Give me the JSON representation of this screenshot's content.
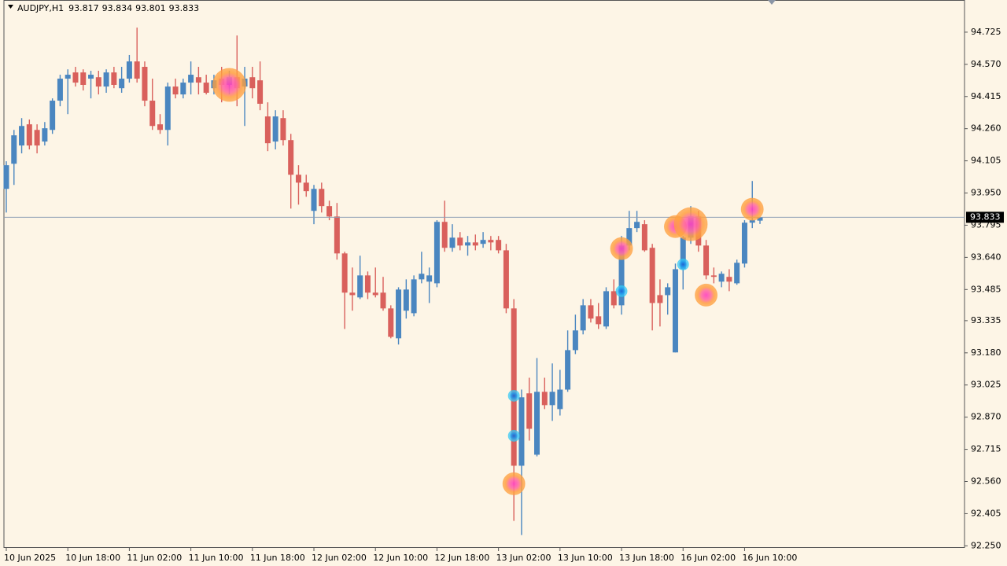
{
  "chart_data": {
    "type": "candlestick",
    "symbol": "AUDJPY,H1",
    "ohlc": [
      93.817,
      93.834,
      93.801,
      93.833
    ],
    "current_price": 93.833,
    "up_color": "#4a86c0",
    "down_color": "#d9605c",
    "categories": [
      "10 Jun 2025",
      null,
      null,
      null,
      null,
      null,
      null,
      null,
      "10 Jun 18:00",
      null,
      null,
      null,
      null,
      null,
      null,
      null,
      "11 Jun 02:00",
      null,
      null,
      null,
      null,
      null,
      null,
      null,
      "11 Jun 10:00",
      null,
      null,
      null,
      null,
      null,
      null,
      null,
      "11 Jun 18:00",
      null,
      null,
      null,
      null,
      null,
      null,
      null,
      "12 Jun 02:00",
      null,
      null,
      null,
      null,
      null,
      null,
      null,
      "12 Jun 10:00",
      null,
      null,
      null,
      null,
      null,
      null,
      null,
      "12 Jun 18:00",
      null,
      null,
      null,
      null,
      null,
      null,
      null,
      "13 Jun 02:00",
      null,
      null,
      null,
      null,
      null,
      null,
      null,
      "13 Jun 10:00",
      null,
      null,
      null,
      null,
      null,
      null,
      null,
      "13 Jun 18:00",
      null,
      null,
      null,
      null,
      null,
      null,
      null,
      "16 Jun 02:00",
      null,
      null,
      null,
      null,
      null,
      null,
      null,
      "16 Jun 10:00",
      null,
      null
    ],
    "open": [
      93.97,
      94.091,
      94.179,
      94.281,
      94.254,
      94.198,
      94.254,
      94.395,
      94.501,
      94.531,
      94.531,
      94.501,
      94.508,
      94.463,
      94.531,
      94.455,
      94.501,
      94.584,
      94.558,
      94.395,
      94.281,
      94.254,
      94.463,
      94.425,
      94.482,
      94.508,
      94.482,
      94.455,
      94.501,
      94.471,
      94.508,
      94.463,
      94.508,
      94.493,
      94.319,
      94.198,
      94.311,
      94.205,
      94.038,
      94.0,
      93.864,
      93.97,
      93.887,
      93.837,
      93.659,
      93.47,
      93.447,
      93.553,
      93.47,
      93.47,
      93.394,
      93.25,
      93.383,
      93.371,
      93.534,
      93.523,
      93.515,
      93.811,
      93.686,
      93.735,
      93.697,
      93.712,
      93.705,
      93.724,
      93.724,
      93.674,
      93.394,
      92.636,
      92.985,
      92.689,
      92.992,
      92.928,
      92.909,
      93.003,
      93.193,
      93.288,
      93.409,
      93.356,
      93.307,
      93.477,
      93.409,
      93.697,
      93.781,
      93.8,
      93.686,
      93.458,
      93.458,
      93.182,
      93.583,
      93.735,
      93.837,
      93.697,
      93.553,
      93.523,
      93.546,
      93.515,
      93.61,
      93.807,
      93.817
    ],
    "high": [
      94.103,
      94.254,
      94.311,
      94.304,
      94.281,
      94.292,
      94.406,
      94.52,
      94.546,
      94.558,
      94.546,
      94.539,
      94.539,
      94.546,
      94.558,
      94.558,
      94.615,
      94.747,
      94.584,
      94.501,
      94.33,
      94.482,
      94.501,
      94.501,
      94.584,
      94.558,
      94.52,
      94.52,
      94.558,
      94.539,
      94.709,
      94.558,
      94.558,
      94.584,
      94.387,
      94.349,
      94.349,
      94.235,
      94.084,
      94.038,
      93.989,
      94.0,
      93.913,
      93.902,
      93.667,
      93.591,
      93.648,
      93.572,
      93.591,
      93.546,
      93.409,
      93.496,
      93.534,
      93.553,
      93.667,
      93.591,
      93.819,
      93.913,
      93.8,
      93.762,
      93.743,
      93.75,
      93.762,
      93.743,
      93.743,
      93.705,
      93.439,
      93.003,
      93.06,
      93.155,
      93.06,
      93.129,
      93.098,
      93.288,
      93.364,
      93.439,
      93.439,
      93.42,
      93.496,
      93.534,
      93.743,
      93.864,
      93.864,
      93.819,
      93.705,
      93.534,
      93.515,
      93.61,
      93.743,
      93.887,
      93.864,
      93.724,
      93.591,
      93.572,
      93.583,
      93.629,
      93.819,
      94.008,
      93.834
    ],
    "low": [
      93.856,
      93.989,
      94.141,
      94.16,
      94.141,
      94.179,
      94.235,
      94.368,
      94.33,
      94.463,
      94.444,
      94.406,
      94.425,
      94.433,
      94.455,
      94.433,
      94.482,
      94.482,
      94.368,
      94.254,
      94.235,
      94.179,
      94.406,
      94.406,
      94.425,
      94.425,
      94.425,
      94.425,
      94.387,
      94.425,
      94.368,
      94.273,
      94.406,
      94.349,
      94.152,
      94.16,
      94.179,
      93.875,
      93.894,
      93.932,
      93.8,
      93.856,
      93.819,
      93.629,
      93.295,
      93.383,
      93.439,
      93.439,
      93.447,
      93.383,
      93.25,
      93.22,
      93.345,
      93.356,
      93.515,
      93.42,
      93.496,
      93.667,
      93.667,
      93.674,
      93.648,
      93.674,
      93.686,
      93.674,
      93.659,
      93.371,
      92.37,
      92.302,
      92.757,
      92.681,
      92.909,
      92.852,
      92.878,
      92.992,
      93.174,
      93.269,
      93.326,
      93.295,
      93.295,
      93.394,
      93.364,
      93.674,
      93.762,
      93.667,
      93.288,
      93.307,
      93.364,
      93.182,
      93.485,
      93.705,
      93.667,
      93.534,
      93.515,
      93.496,
      93.477,
      93.508,
      93.591,
      93.781,
      93.801
    ],
    "close": [
      94.084,
      94.228,
      94.273,
      94.179,
      94.179,
      94.262,
      94.395,
      94.501,
      94.52,
      94.482,
      94.471,
      94.52,
      94.463,
      94.531,
      94.471,
      94.501,
      94.584,
      94.501,
      94.395,
      94.273,
      94.254,
      94.463,
      94.425,
      94.482,
      94.52,
      94.482,
      94.433,
      94.493,
      94.471,
      94.508,
      94.455,
      94.501,
      94.455,
      94.38,
      94.19,
      94.319,
      94.205,
      94.038,
      94.0,
      93.959,
      93.97,
      93.887,
      93.837,
      93.659,
      93.47,
      93.458,
      93.553,
      93.47,
      93.458,
      93.394,
      93.257,
      93.485,
      93.485,
      93.534,
      93.561,
      93.553,
      93.811,
      93.686,
      93.735,
      93.697,
      93.712,
      93.697,
      93.724,
      93.712,
      93.674,
      93.394,
      92.636,
      92.966,
      92.814,
      92.992,
      92.928,
      92.992,
      93.003,
      93.193,
      93.288,
      93.409,
      93.345,
      93.318,
      93.477,
      93.409,
      93.697,
      93.781,
      93.811,
      93.674,
      93.42,
      93.42,
      93.496,
      93.583,
      93.735,
      93.837,
      93.697,
      93.553,
      93.546,
      93.561,
      93.523,
      93.614,
      93.807,
      93.819,
      93.833
    ],
    "markers": [
      {
        "color": "#ffa040",
        "x": [
          29,
          80,
          87,
          89,
          91,
          97,
          66
        ],
        "values": [
          94.471,
          93.682,
          93.788,
          93.8,
          93.458,
          93.872,
          92.549
        ],
        "sizes": [
          3,
          2,
          2,
          3,
          2,
          2,
          2
        ]
      },
      {
        "color": "#22c4f0",
        "x": [
          66,
          66,
          80,
          88
        ],
        "values": [
          92.973,
          92.78,
          93.477,
          93.606
        ],
        "sizes": [
          1,
          1,
          1,
          1
        ]
      }
    ],
    "ylim": [
      92.24,
      94.88
    ],
    "yticks": [
      94.725,
      {
        "value": 94.57,
        "label": "94.570"
      },
      94.415,
      {
        "value": 94.26,
        "label": "94.260"
      },
      94.105,
      {
        "value": 93.95,
        "label": "93.950"
      },
      93.795,
      {
        "value": 93.64,
        "label": "93.640"
      },
      93.485,
      93.335,
      {
        "value": 93.18,
        "label": "93.180"
      },
      93.025,
      {
        "value": 92.87,
        "label": "92.870"
      },
      92.715,
      {
        "value": 92.56,
        "label": "92.560"
      },
      92.405,
      {
        "value": 92.25,
        "label": "92.250"
      }
    ]
  }
}
